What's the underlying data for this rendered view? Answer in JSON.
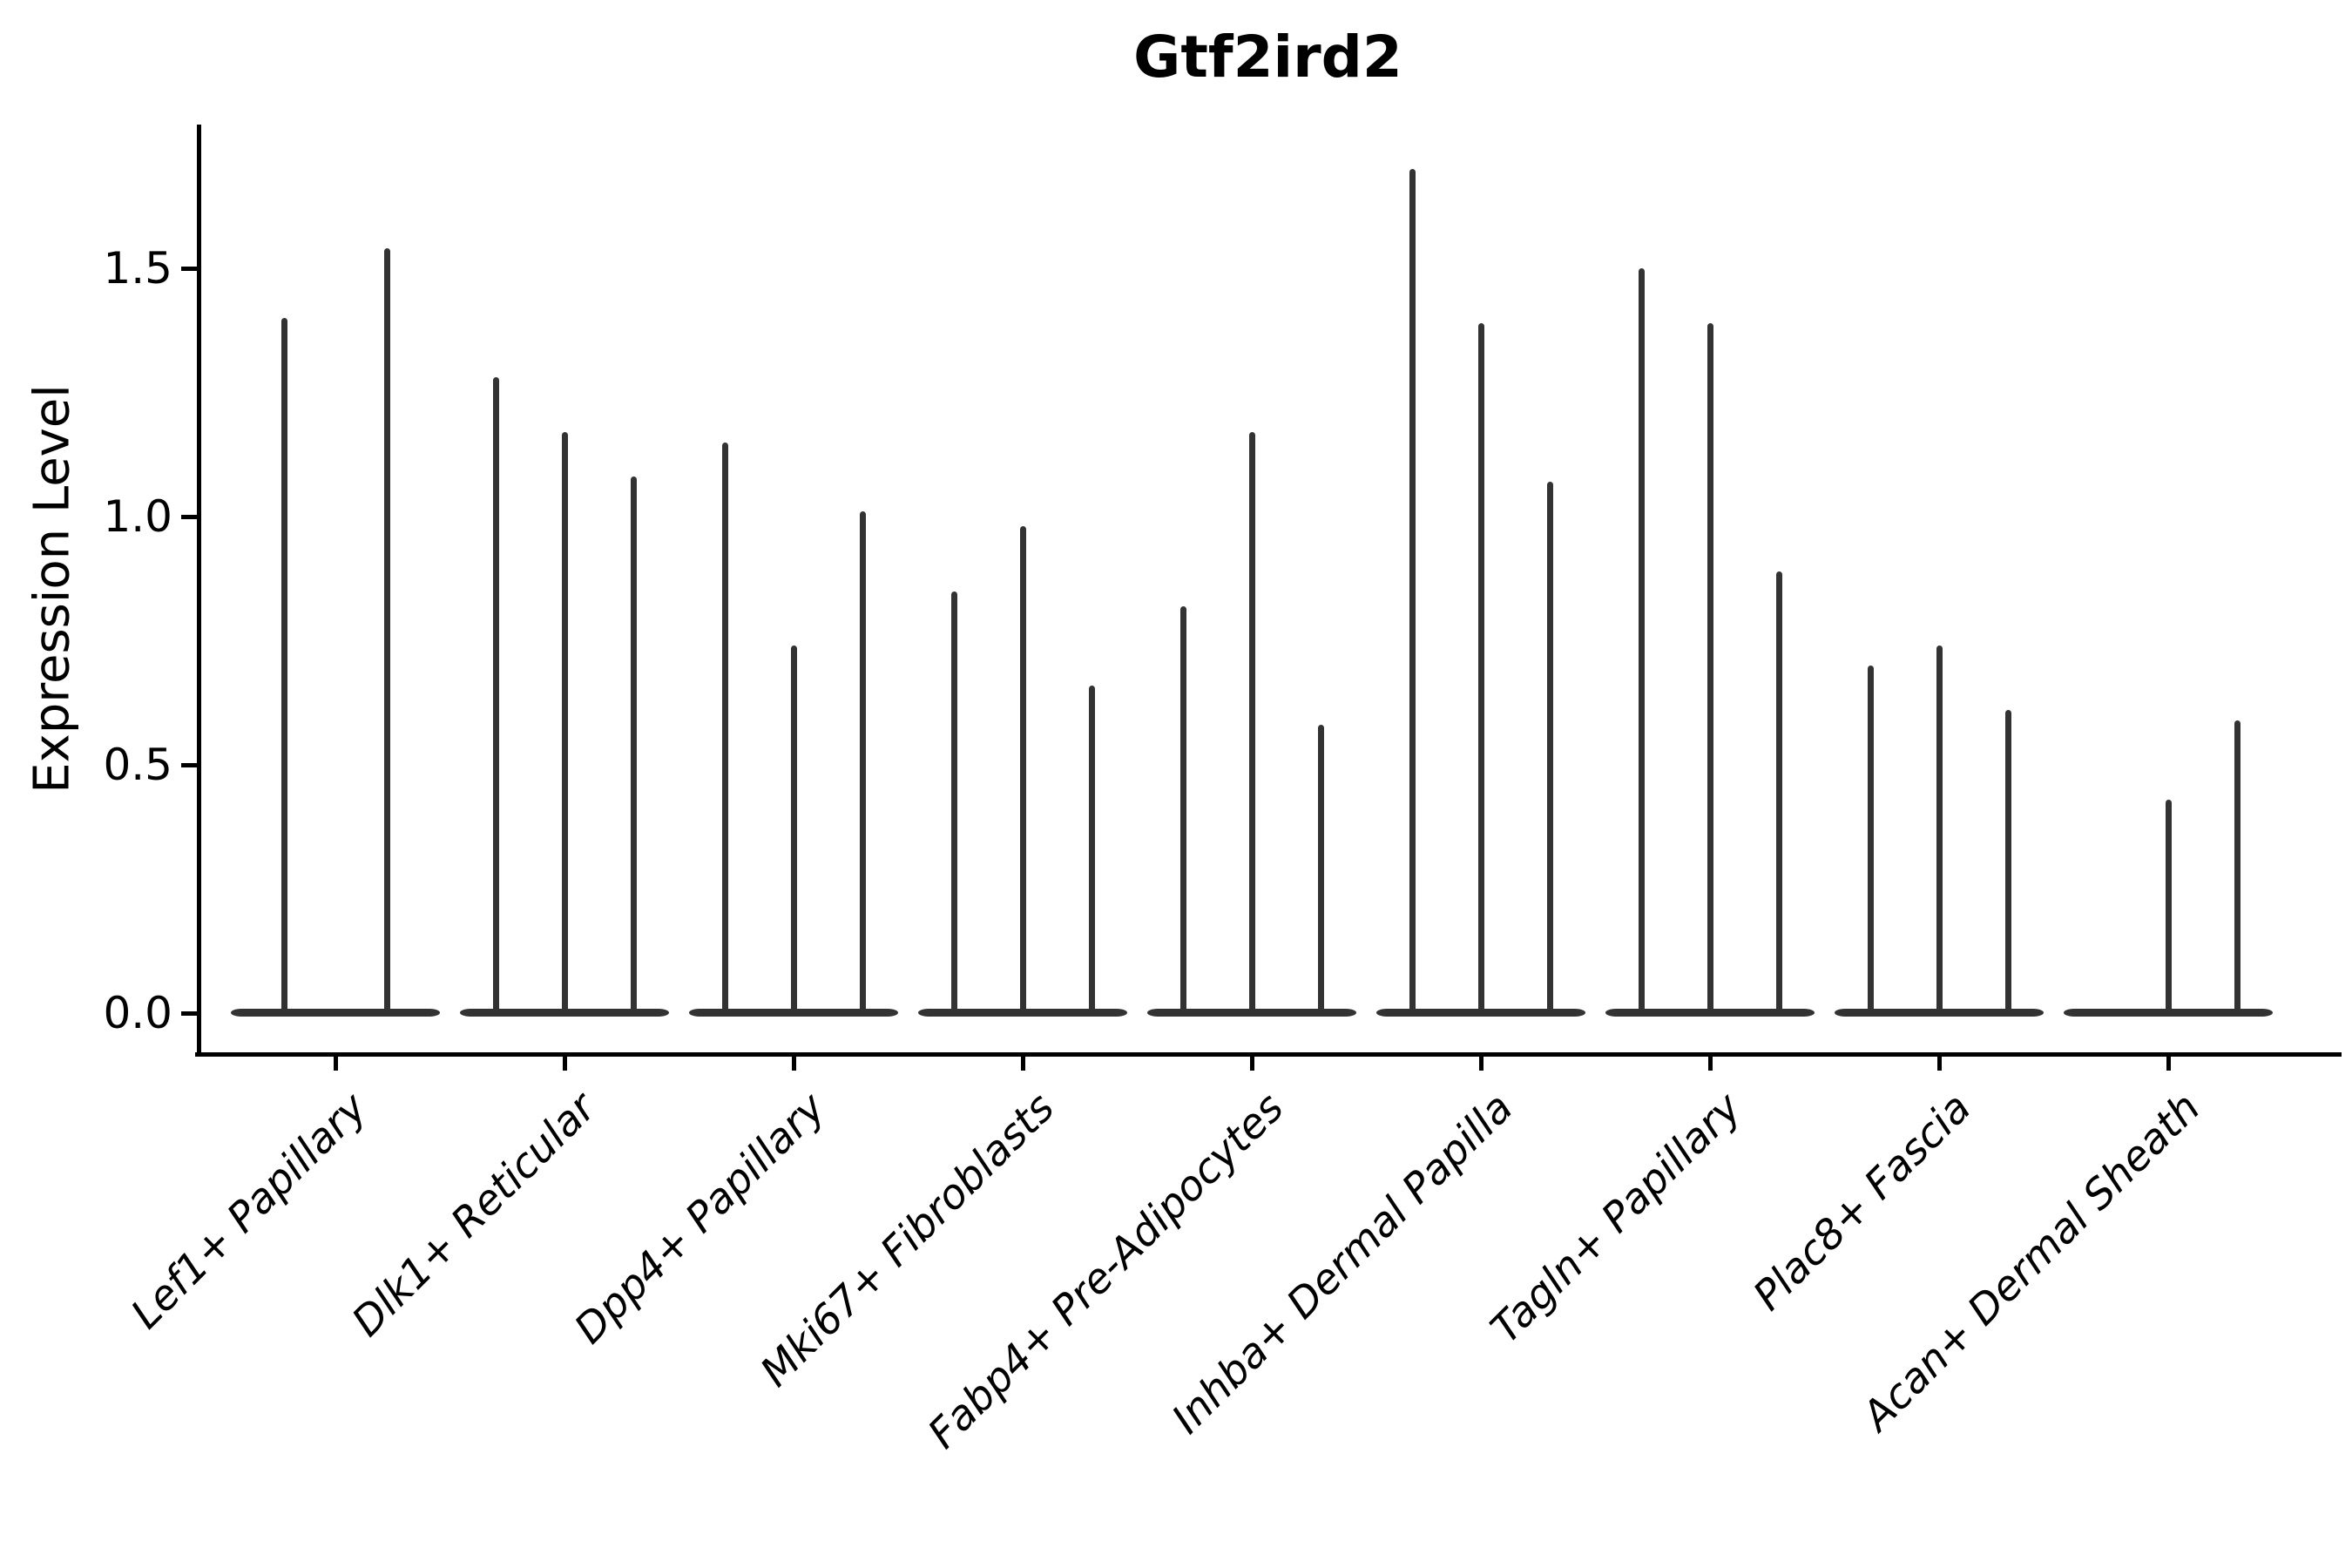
{
  "title": "Gtf2ird2",
  "y_axis": {
    "label": "Expression Level",
    "tick_labels": [
      "0.0",
      "0.5",
      "1.0",
      "1.5"
    ],
    "tick_values": [
      0.0,
      0.5,
      1.0,
      1.5
    ]
  },
  "colors": {
    "violin": "#333333",
    "axis": "#000000",
    "text": "#000000",
    "background": "#ffffff"
  },
  "chart_data": {
    "type": "violin",
    "title": "Gtf2ird2",
    "xlabel": "",
    "ylabel": "Expression Level",
    "ylim": [
      -0.05,
      1.79
    ],
    "yticks": [
      0.0,
      0.5,
      1.0,
      1.5
    ],
    "grid": false,
    "legend": false,
    "description": "Narrow spike-shaped violins per cell-type group; most cells at 0 expression form a flat base, thin spikes reach the max expression of each sub-violin.",
    "categories": [
      "Lef1+ Papillary",
      "Dlk1+ Reticular",
      "Dpp4+ Papillary",
      "Mki67+ Fibroblasts",
      "Fabp4+ Pre-Adipocytes",
      "Inhba+ Dermal Papilla",
      "Tagln+ Papillary",
      "Plac8+ Fascia",
      "Acan+ Dermal Sheath"
    ],
    "series": [
      {
        "category": "Lef1+ Papillary",
        "violin_peaks": [
          1.4,
          1.54
        ]
      },
      {
        "category": "Dlk1+ Reticular",
        "violin_peaks": [
          1.28,
          1.17,
          1.08
        ]
      },
      {
        "category": "Dpp4+ Papillary",
        "violin_peaks": [
          1.15,
          0.74,
          1.01
        ]
      },
      {
        "category": "Mki67+ Fibroblasts",
        "violin_peaks": [
          0.85,
          0.98,
          0.66
        ]
      },
      {
        "category": "Fabp4+ Pre-Adipocytes",
        "violin_peaks": [
          0.82,
          1.17,
          0.58
        ]
      },
      {
        "category": "Inhba+ Dermal Papilla",
        "violin_peaks": [
          1.7,
          1.39,
          1.07
        ]
      },
      {
        "category": "Tagln+ Papillary",
        "violin_peaks": [
          1.5,
          1.39,
          0.89
        ]
      },
      {
        "category": "Plac8+ Fascia",
        "violin_peaks": [
          0.7,
          0.74,
          0.61
        ]
      },
      {
        "category": "Acan+ Dermal Sheath",
        "violin_peaks": [
          0.0,
          0.43,
          0.59
        ]
      }
    ]
  }
}
